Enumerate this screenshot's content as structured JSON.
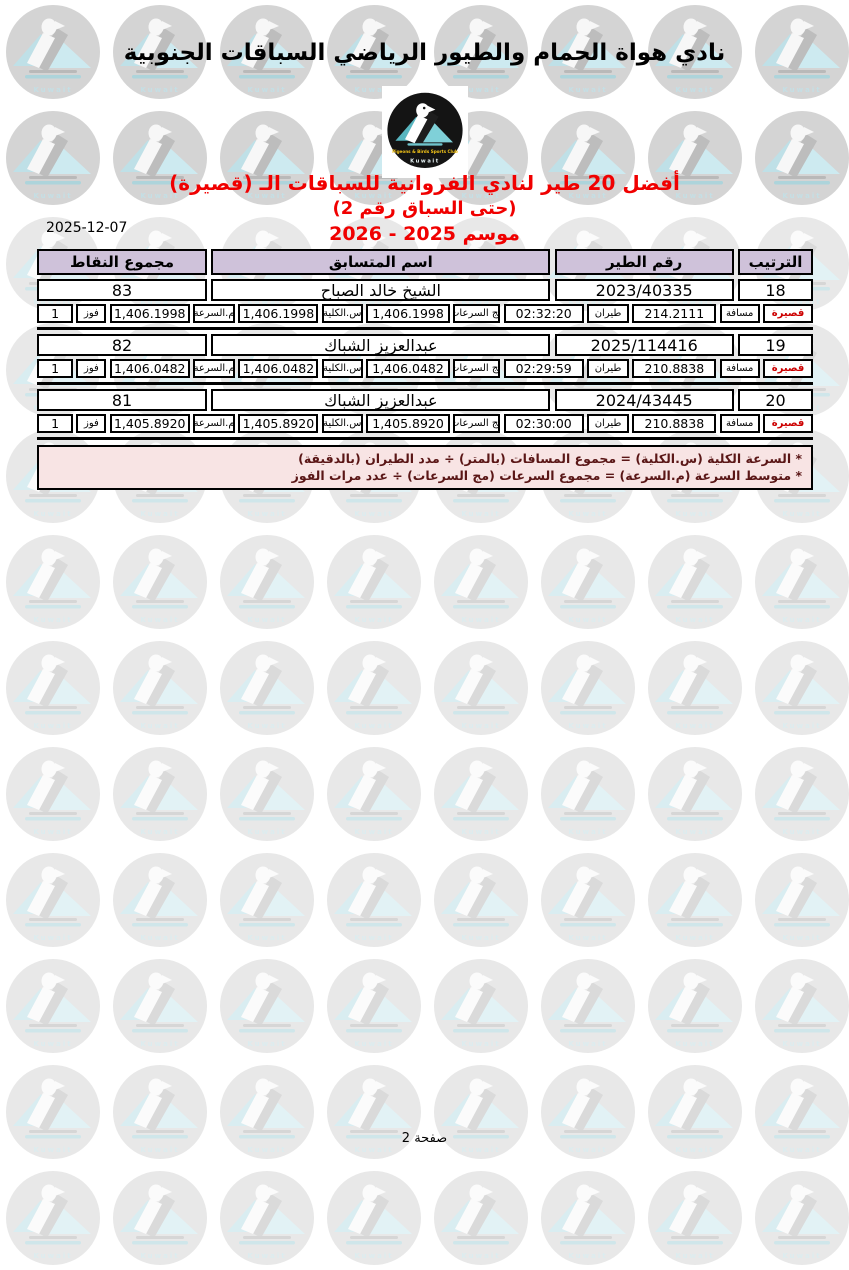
{
  "page": {
    "title": "نادي هواة الحمام والطيور الرياضي السباقات الجنوبية",
    "date": "2025-12-07",
    "heading1": "أفضل 20 طير لنادي الفروانية للسباقات الـ (قصيرة)",
    "heading2": "(حتى السباق رقم 2)",
    "heading3": "موسم 2025 - 2026",
    "page_label": "صفحة 2"
  },
  "logo": {
    "club_en": "Pigeons & Birds Sports Club",
    "country": "Kuwait",
    "pigeon_icon": "pigeon-icon"
  },
  "table": {
    "headers": {
      "rank": "الترتيب",
      "bird_no": "رقم الطير",
      "name": "اسم المتسابق",
      "points": "مجموع النقاط"
    },
    "sub_labels": {
      "category": "قصيرة",
      "distance": "مسافة",
      "flight": "طيران",
      "sum_speeds": "مج السرعات",
      "total_speed": "س.الكلية",
      "avg_speed": "م.السرعة",
      "wins": "فوز"
    },
    "rows": [
      {
        "rank": "18",
        "bird_no": "2023/40335",
        "name": "الشيخ خالد الصباح",
        "points": "83",
        "distance": "214.2111",
        "flight": "02:32:20",
        "sum_speeds": "1,406.1998",
        "total_speed": "1,406.1998",
        "avg_speed": "1,406.1998",
        "wins": "1"
      },
      {
        "rank": "19",
        "bird_no": "2025/114416",
        "name": "عبدالعزيز الشباك",
        "points": "82",
        "distance": "210.8838",
        "flight": "02:29:59",
        "sum_speeds": "1,406.0482",
        "total_speed": "1,406.0482",
        "avg_speed": "1,406.0482",
        "wins": "1"
      },
      {
        "rank": "20",
        "bird_no": "2024/43445",
        "name": "عبدالعزيز الشباك",
        "points": "81",
        "distance": "210.8838",
        "flight": "02:30:00",
        "sum_speeds": "1,405.8920",
        "total_speed": "1,405.8920",
        "avg_speed": "1,405.8920",
        "wins": "1"
      }
    ]
  },
  "notes": [
    "* السرعة الكلية (س.الكلية) = مجموع المسافات (بالمتر) ÷ مدد الطيران (بالدقيقة)",
    "* متوسط السرعة (م.السرعة) = مجموع السرعات (مج السرعات) ÷ عدد مرات الفوز"
  ],
  "colors": {
    "accent_red": "#f00000",
    "category_red": "#cc0000",
    "header_bg": "#cfc2da",
    "notes_bg": "#f8e4e4",
    "notes_text": "#5a1616",
    "logo_teal": "#58b6c0",
    "logo_teal_light": "#7fd0d8",
    "logo_yellow": "#f5c518",
    "logo_black": "#141414"
  }
}
